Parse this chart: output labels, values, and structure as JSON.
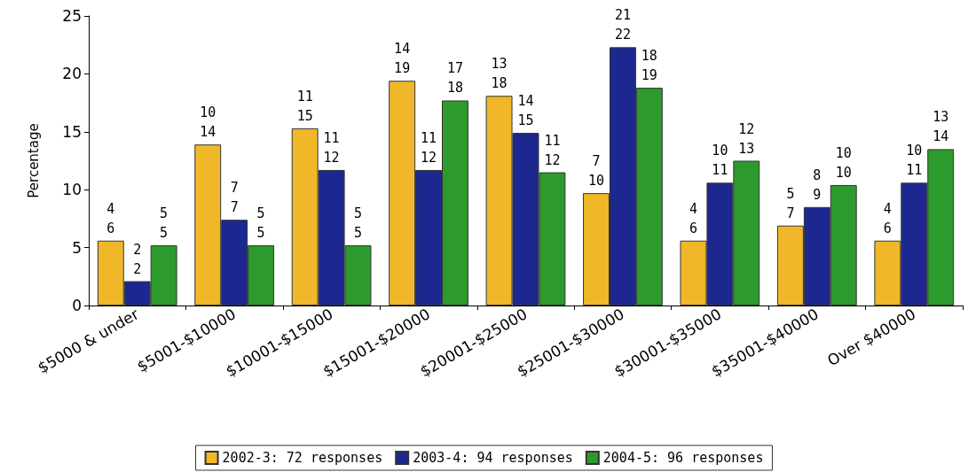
{
  "chart_data": {
    "type": "bar",
    "ylabel": "Percentage",
    "categories": [
      "$5000 & under",
      "$5001-$10000",
      "$10001-$15000",
      "$15001-$20000",
      "$20001-$25000",
      "$25001-$30000",
      "$30001-$35000",
      "$35001-$40000",
      "Over $40000"
    ],
    "series": [
      {
        "name": "2002-3: 72 responses",
        "color": "#f0b828",
        "values": [
          5.6,
          13.9,
          15.3,
          19.4,
          18.1,
          9.7,
          5.6,
          6.9,
          5.6
        ],
        "value_labels": [
          "4\n6",
          "10\n14",
          "11\n15",
          "14\n19",
          "13\n18",
          "7\n10",
          "4\n6",
          "5\n7",
          "4\n6"
        ]
      },
      {
        "name": "2003-4: 94 responses",
        "color": "#1c2890",
        "values": [
          2.1,
          7.4,
          11.7,
          11.7,
          14.9,
          22.3,
          10.6,
          8.5,
          10.6
        ],
        "value_labels": [
          "2\n2",
          "7\n7",
          "11\n12",
          "11\n12",
          "14\n15",
          "21\n22",
          "10\n11",
          "8\n9",
          "10\n11"
        ]
      },
      {
        "name": "2004-5: 96 responses",
        "color": "#2c9a2c",
        "values": [
          5.2,
          5.2,
          5.2,
          17.7,
          11.5,
          18.8,
          12.5,
          10.4,
          13.5
        ],
        "value_labels": [
          "5\n5",
          "5\n5",
          "5\n5",
          "17\n18",
          "11\n12",
          "18\n19",
          "12\n13",
          "10\n10",
          "13\n14"
        ]
      }
    ],
    "ylim": [
      0,
      25
    ],
    "yticks": [
      0,
      5,
      10,
      15,
      20,
      25
    ],
    "grid": false,
    "legend": "bottom"
  }
}
